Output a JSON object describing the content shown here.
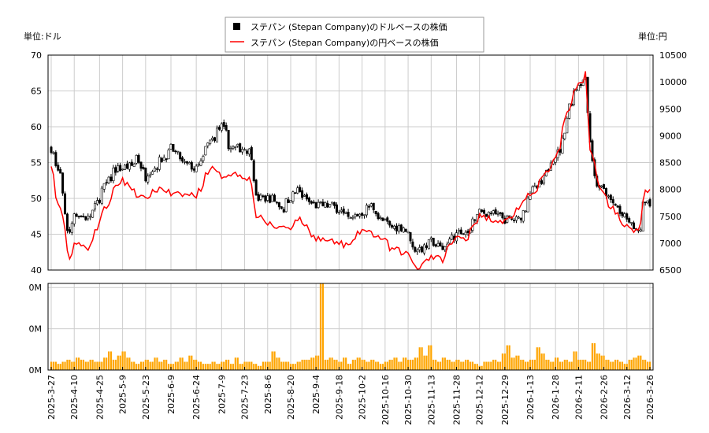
{
  "chart_data": {
    "type": "candlestick+line+bar",
    "legend": {
      "placement": "top-center",
      "entries": [
        "ステパン (Stepan Company)のドルベースの株価",
        "ステパン (Stepan Company)の円ベースの株価"
      ]
    },
    "left_unit": "単位:ドル",
    "right_unit": "単位:円",
    "y_left": {
      "range": [
        40,
        70
      ],
      "ticks": [
        40,
        45,
        50,
        55,
        60,
        65,
        70
      ]
    },
    "y_right": {
      "range": [
        6500,
        10500
      ],
      "ticks": [
        6500,
        7000,
        7500,
        8000,
        8500,
        9000,
        9500,
        10000,
        10500
      ]
    },
    "volume_axis": {
      "range": [
        0,
        0.42
      ],
      "ticks": [
        0,
        0.2,
        0.4
      ],
      "tick_labels": [
        "0M",
        "0M",
        "0M"
      ]
    },
    "x_ticks": [
      "2025-3-27",
      "2025-4-10",
      "2025-4-25",
      "2025-5-9",
      "2025-5-23",
      "2025-6-9",
      "2025-6-24",
      "2025-7-9",
      "2025-7-23",
      "2025-8-6",
      "2025-8-20",
      "2025-9-4",
      "2025-9-18",
      "2025-10-2",
      "2025-10-16",
      "2025-10-30",
      "2025-11-13",
      "2025-11-28",
      "2025-12-12",
      "2025-12-29",
      "2026-1-13",
      "2026-1-28",
      "2026-2-11",
      "2026-2-26",
      "2026-3-12",
      "2026-3-26"
    ],
    "grid": true,
    "colors": {
      "candle": "#000000",
      "yen_line": "#ff0000",
      "volume": "#ffa500",
      "grid": "#cccccc"
    },
    "usd_close": [
      [
        "2025-3-27",
        57
      ],
      [
        "2025-4-2",
        53
      ],
      [
        "2025-4-4",
        48
      ],
      [
        "2025-4-8",
        45
      ],
      [
        "2025-4-10",
        48
      ],
      [
        "2025-4-20",
        47
      ],
      [
        "2025-4-25",
        50
      ],
      [
        "2025-5-5",
        54
      ],
      [
        "2025-5-15",
        54.5
      ],
      [
        "2025-5-19",
        56
      ],
      [
        "2025-5-23",
        53
      ],
      [
        "2025-6-1",
        55
      ],
      [
        "2025-6-9",
        57
      ],
      [
        "2025-6-15",
        55
      ],
      [
        "2025-6-24",
        54
      ],
      [
        "2025-7-2",
        58
      ],
      [
        "2025-7-9",
        60
      ],
      [
        "2025-7-15",
        57
      ],
      [
        "2025-7-23",
        57
      ],
      [
        "2025-7-28",
        56
      ],
      [
        "2025-7-30",
        50
      ],
      [
        "2025-8-10",
        50
      ],
      [
        "2025-8-15",
        48.5
      ],
      [
        "2025-8-24",
        51.5
      ],
      [
        "2025-8-28",
        50
      ],
      [
        "2025-9-4",
        49
      ],
      [
        "2025-9-15",
        49
      ],
      [
        "2025-9-25",
        47
      ],
      [
        "2025-10-2",
        48
      ],
      [
        "2025-10-8",
        49
      ],
      [
        "2025-10-14",
        47
      ],
      [
        "2025-10-20",
        46
      ],
      [
        "2025-10-28",
        46
      ],
      [
        "2025-11-3",
        43
      ],
      [
        "2025-11-10",
        43
      ],
      [
        "2025-11-13",
        44
      ],
      [
        "2025-11-20",
        43
      ],
      [
        "2025-11-28",
        45
      ],
      [
        "2025-12-5",
        45
      ],
      [
        "2025-12-12",
        48
      ],
      [
        "2025-12-20",
        48
      ],
      [
        "2025-12-29",
        47
      ],
      [
        "2026-1-6",
        47
      ],
      [
        "2026-1-13",
        51
      ],
      [
        "2026-1-20",
        52
      ],
      [
        "2026-1-24",
        55
      ],
      [
        "2026-1-28",
        56
      ],
      [
        "2026-2-2",
        58
      ],
      [
        "2026-2-5",
        63
      ],
      [
        "2026-2-11",
        66
      ],
      [
        "2026-2-16",
        67
      ],
      [
        "2026-2-18",
        58
      ],
      [
        "2026-2-20",
        53
      ],
      [
        "2026-2-26",
        51
      ],
      [
        "2026-3-5",
        49
      ],
      [
        "2026-3-12",
        47
      ],
      [
        "2026-3-17",
        46
      ],
      [
        "2026-3-19",
        45
      ],
      [
        "2026-3-24",
        50
      ],
      [
        "2026-3-26",
        49.5
      ]
    ],
    "jpy_close": [
      [
        "2025-3-27",
        8400
      ],
      [
        "2025-4-2",
        7600
      ],
      [
        "2025-4-8",
        6700
      ],
      [
        "2025-4-10",
        7000
      ],
      [
        "2025-4-20",
        6900
      ],
      [
        "2025-4-25",
        7400
      ],
      [
        "2025-5-2",
        7800
      ],
      [
        "2025-5-9",
        8200
      ],
      [
        "2025-5-23",
        7800
      ],
      [
        "2025-6-1",
        8050
      ],
      [
        "2025-6-9",
        7900
      ],
      [
        "2025-6-24",
        7900
      ],
      [
        "2025-7-2",
        8400
      ],
      [
        "2025-7-9",
        8250
      ],
      [
        "2025-7-15",
        8300
      ],
      [
        "2025-7-23",
        8250
      ],
      [
        "2025-7-28",
        8100
      ],
      [
        "2025-7-30",
        7500
      ],
      [
        "2025-8-10",
        7300
      ],
      [
        "2025-8-20",
        7300
      ],
      [
        "2025-8-24",
        7500
      ],
      [
        "2025-9-4",
        7100
      ],
      [
        "2025-9-18",
        7000
      ],
      [
        "2025-9-25",
        6950
      ],
      [
        "2025-10-2",
        7250
      ],
      [
        "2025-10-14",
        7100
      ],
      [
        "2025-10-20",
        6900
      ],
      [
        "2025-10-30",
        6800
      ],
      [
        "2025-11-5",
        6550
      ],
      [
        "2025-11-13",
        6750
      ],
      [
        "2025-11-20",
        6700
      ],
      [
        "2025-11-28",
        7100
      ],
      [
        "2025-12-5",
        7100
      ],
      [
        "2025-12-12",
        7500
      ],
      [
        "2025-12-29",
        7400
      ],
      [
        "2026-1-13",
        7900
      ],
      [
        "2026-1-28",
        8550
      ],
      [
        "2026-2-5",
        9500
      ],
      [
        "2026-2-11",
        9950
      ],
      [
        "2026-2-16",
        10200
      ],
      [
        "2026-2-18",
        8700
      ],
      [
        "2026-2-26",
        7900
      ],
      [
        "2026-3-12",
        7300
      ],
      [
        "2026-3-19",
        7200
      ],
      [
        "2026-3-24",
        8000
      ],
      [
        "2026-3-26",
        7950
      ]
    ],
    "volume_M": [
      0.04,
      0.03,
      0.04,
      0.05,
      0.04,
      0.06,
      0.05,
      0.04,
      0.05,
      0.04,
      0.04,
      0.06,
      0.09,
      0.05,
      0.07,
      0.09,
      0.06,
      0.04,
      0.03,
      0.04,
      0.05,
      0.04,
      0.06,
      0.04,
      0.05,
      0.03,
      0.04,
      0.06,
      0.04,
      0.07,
      0.05,
      0.04,
      0.03,
      0.03,
      0.04,
      0.03,
      0.04,
      0.05,
      0.03,
      0.06,
      0.03,
      0.04,
      0.04,
      0.03,
      0.02,
      0.04,
      0.04,
      0.09,
      0.06,
      0.04,
      0.04,
      0.03,
      0.04,
      0.05,
      0.05,
      0.06,
      0.07,
      0.42,
      0.05,
      0.06,
      0.05,
      0.04,
      0.06,
      0.03,
      0.05,
      0.06,
      0.05,
      0.04,
      0.05,
      0.04,
      0.03,
      0.04,
      0.05,
      0.06,
      0.04,
      0.06,
      0.05,
      0.06,
      0.11,
      0.07,
      0.12,
      0.05,
      0.04,
      0.06,
      0.05,
      0.04,
      0.05,
      0.04,
      0.05,
      0.04,
      0.03,
      0.02,
      0.04,
      0.04,
      0.05,
      0.04,
      0.08,
      0.12,
      0.06,
      0.07,
      0.05,
      0.04,
      0.05,
      0.11,
      0.08,
      0.05,
      0.04,
      0.06,
      0.04,
      0.05,
      0.04,
      0.09,
      0.05,
      0.05,
      0.04,
      0.13,
      0.08,
      0.07,
      0.05,
      0.04,
      0.05,
      0.04,
      0.03,
      0.05,
      0.06,
      0.07,
      0.05,
      0.04
    ]
  }
}
